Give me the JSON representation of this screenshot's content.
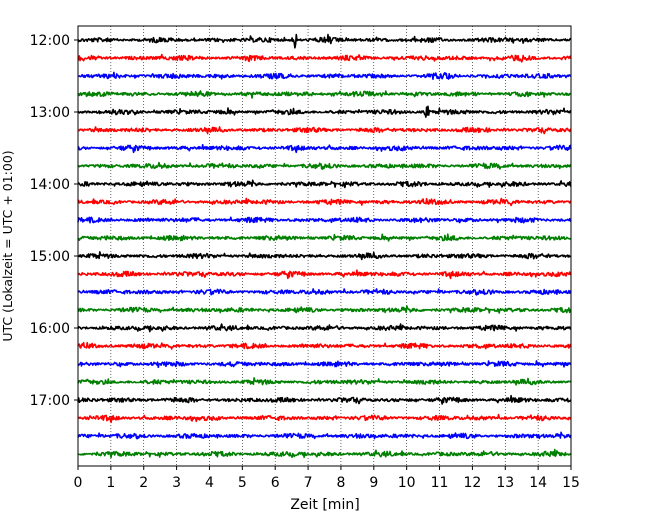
{
  "chart_data": {
    "type": "line",
    "title": "",
    "xlabel": "Zeit  [min]",
    "ylabel": "UTC (Lokalzeit = UTC + 01:00)",
    "xlim": [
      0,
      15
    ],
    "x_ticks": [
      "0",
      "1",
      "2",
      "3",
      "4",
      "5",
      "6",
      "7",
      "8",
      "9",
      "10",
      "11",
      "12",
      "13",
      "14",
      "15"
    ],
    "y_ticks": [
      "12:00",
      "13:00",
      "14:00",
      "15:00",
      "16:00",
      "17:00"
    ],
    "grid": "vertical dotted",
    "trace_interval_minutes": 15,
    "trace_colors": [
      "#000000",
      "#ff0000",
      "#0000ff",
      "#008000"
    ],
    "traces": [
      {
        "start": "12:00",
        "color": "#000000"
      },
      {
        "start": "12:15",
        "color": "#ff0000"
      },
      {
        "start": "12:30",
        "color": "#0000ff"
      },
      {
        "start": "12:45",
        "color": "#008000"
      },
      {
        "start": "13:00",
        "color": "#000000"
      },
      {
        "start": "13:15",
        "color": "#ff0000"
      },
      {
        "start": "13:30",
        "color": "#0000ff"
      },
      {
        "start": "13:45",
        "color": "#008000"
      },
      {
        "start": "14:00",
        "color": "#000000"
      },
      {
        "start": "14:15",
        "color": "#ff0000"
      },
      {
        "start": "14:30",
        "color": "#0000ff"
      },
      {
        "start": "14:45",
        "color": "#008000"
      },
      {
        "start": "15:00",
        "color": "#000000"
      },
      {
        "start": "15:15",
        "color": "#ff0000"
      },
      {
        "start": "15:30",
        "color": "#0000ff"
      },
      {
        "start": "15:45",
        "color": "#008000"
      },
      {
        "start": "16:00",
        "color": "#000000"
      },
      {
        "start": "16:15",
        "color": "#ff0000"
      },
      {
        "start": "16:30",
        "color": "#0000ff"
      },
      {
        "start": "16:45",
        "color": "#008000"
      },
      {
        "start": "17:00",
        "color": "#000000"
      },
      {
        "start": "17:15",
        "color": "#ff0000"
      },
      {
        "start": "17:30",
        "color": "#0000ff"
      },
      {
        "start": "17:45",
        "color": "#008000"
      }
    ],
    "events": [
      {
        "trace": "12:00",
        "minute": 6.6
      },
      {
        "trace": "12:00",
        "minute": 7.6
      },
      {
        "trace": "13:00",
        "minute": 10.6
      }
    ]
  }
}
